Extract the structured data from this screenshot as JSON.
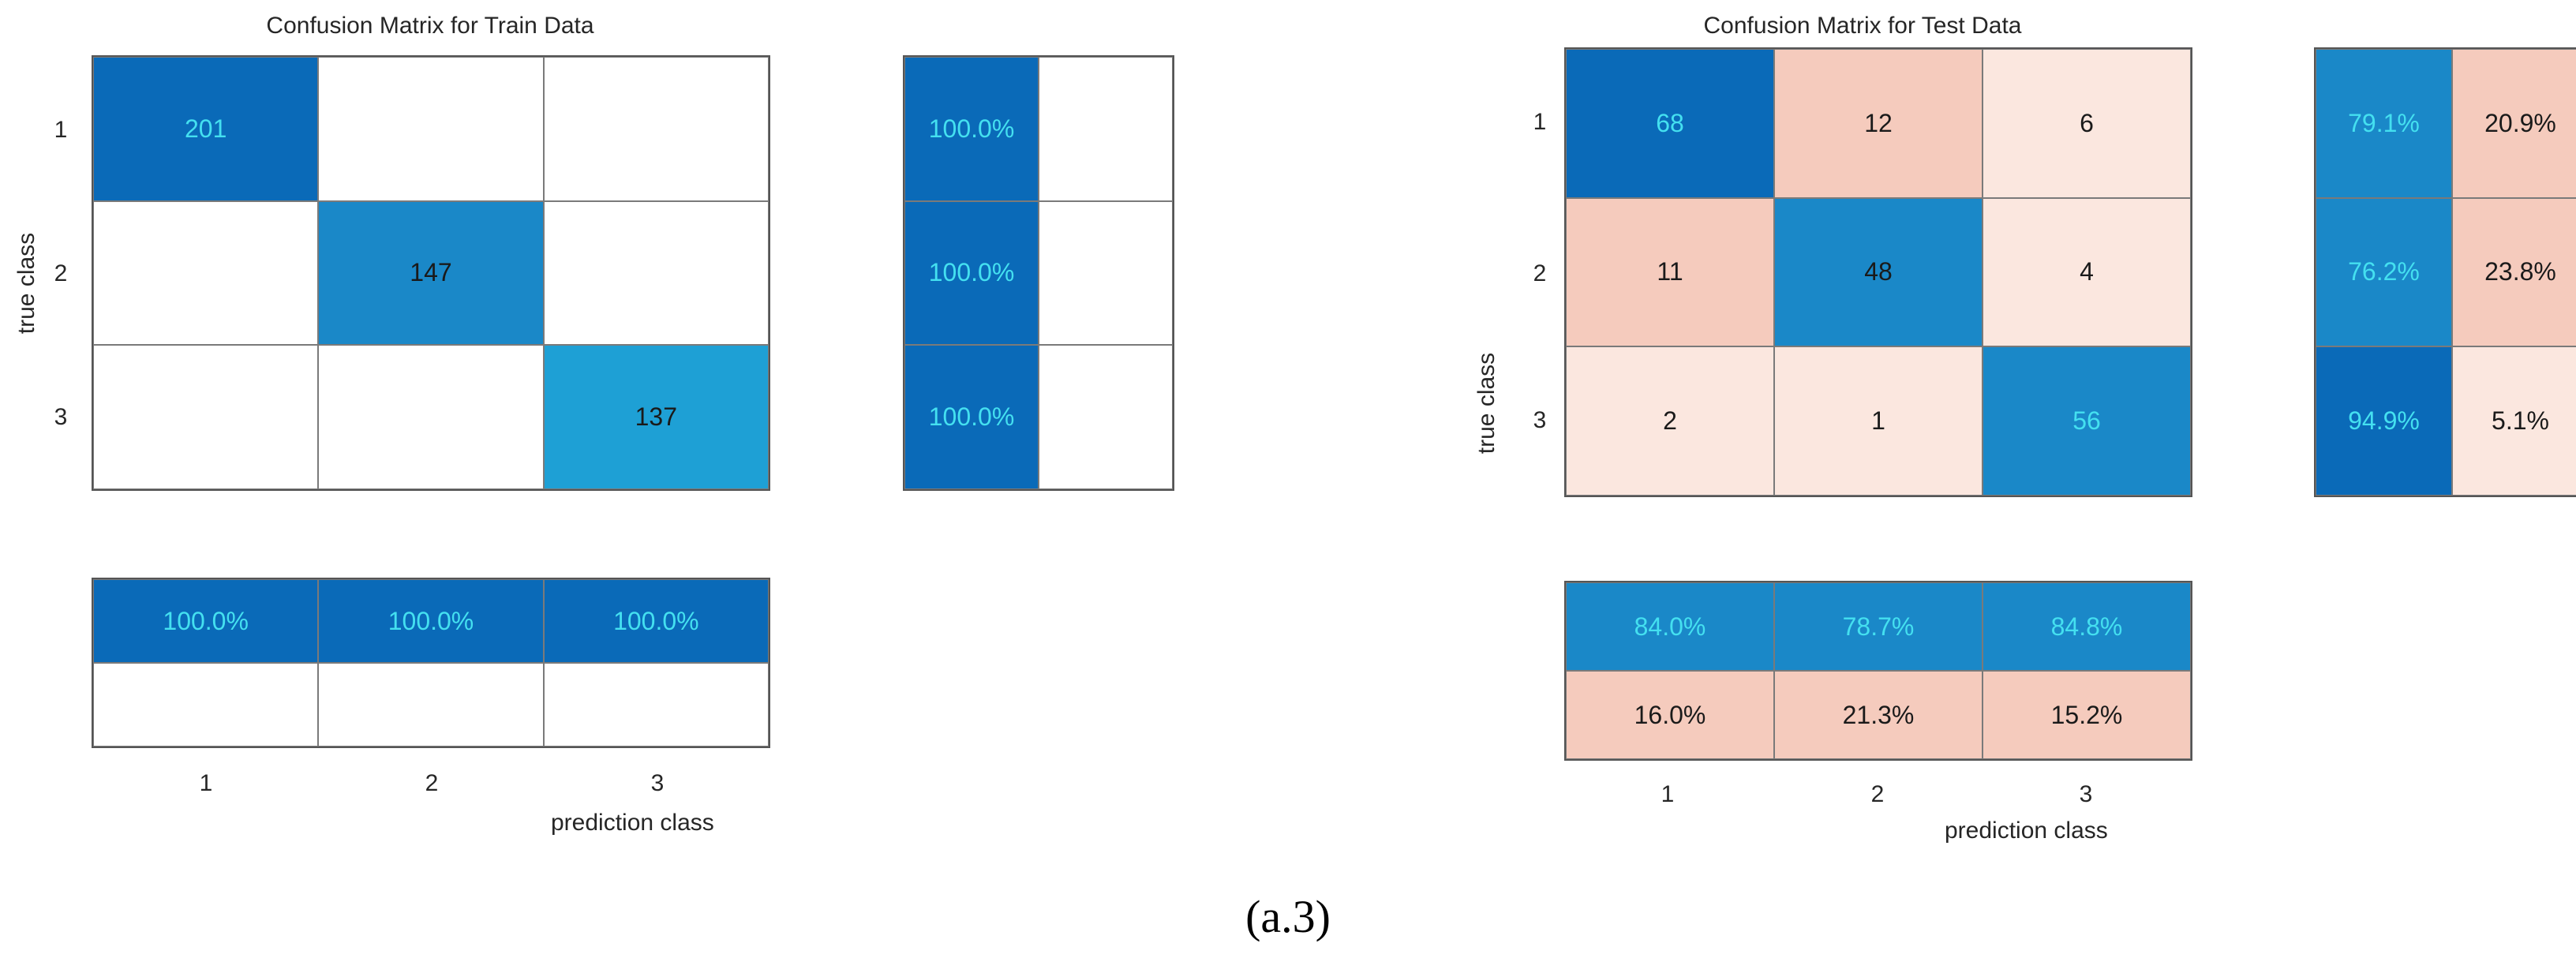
{
  "colors": {
    "blue_dark": "#0a6ab8",
    "blue_mid": "#1a88c8",
    "blue_light": "#1ea0d5",
    "pink_mid": "#f5cbbd",
    "pink_light": "#fbe7df",
    "white": "#ffffff",
    "cyan_text": "#44e0f0",
    "dark_text": "#1a1a1a"
  },
  "caption": "(a.3)",
  "chart_data": [
    {
      "type": "heatmap",
      "title": "Confusion Matrix for Train Data",
      "xlabel": "prediction class",
      "ylabel": "true class",
      "x_ticks": [
        "1",
        "2",
        "3"
      ],
      "y_ticks": [
        "1",
        "2",
        "3"
      ],
      "matrix": [
        [
          "201",
          "",
          ""
        ],
        [
          "",
          "147",
          ""
        ],
        [
          "",
          "",
          "137"
        ]
      ],
      "row_summary": [
        [
          "100.0%",
          ""
        ],
        [
          "100.0%",
          ""
        ],
        [
          "100.0%",
          ""
        ]
      ],
      "column_summary": [
        [
          "100.0%",
          "100.0%",
          "100.0%"
        ],
        [
          "",
          "",
          ""
        ]
      ],
      "cell_colors": {
        "matrix": [
          [
            "blue_dark",
            "white",
            "white"
          ],
          [
            "white",
            "blue_mid",
            "white"
          ],
          [
            "white",
            "white",
            "blue_light"
          ]
        ],
        "row_summary": [
          [
            "blue_dark",
            "white"
          ],
          [
            "blue_dark",
            "white"
          ],
          [
            "blue_dark",
            "white"
          ]
        ],
        "column_summary": [
          [
            "blue_dark",
            "blue_dark",
            "blue_dark"
          ],
          [
            "white",
            "white",
            "white"
          ]
        ]
      },
      "text_colors": {
        "matrix": [
          [
            "cyan_text",
            "dark_text",
            "dark_text"
          ],
          [
            "dark_text",
            "dark_text",
            "dark_text"
          ],
          [
            "dark_text",
            "dark_text",
            "dark_text"
          ]
        ],
        "row_summary": [
          [
            "cyan_text",
            "dark_text"
          ],
          [
            "cyan_text",
            "dark_text"
          ],
          [
            "cyan_text",
            "dark_text"
          ]
        ],
        "column_summary": [
          [
            "cyan_text",
            "cyan_text",
            "cyan_text"
          ],
          [
            "dark_text",
            "dark_text",
            "dark_text"
          ]
        ]
      }
    },
    {
      "type": "heatmap",
      "title": "Confusion Matrix for Test Data",
      "xlabel": "prediction class",
      "ylabel": "true class",
      "x_ticks": [
        "1",
        "2",
        "3"
      ],
      "y_ticks": [
        "1",
        "2",
        "3"
      ],
      "matrix": [
        [
          "68",
          "12",
          "6"
        ],
        [
          "11",
          "48",
          "4"
        ],
        [
          "2",
          "1",
          "56"
        ]
      ],
      "row_summary": [
        [
          "79.1%",
          "20.9%"
        ],
        [
          "76.2%",
          "23.8%"
        ],
        [
          "94.9%",
          "5.1%"
        ]
      ],
      "column_summary": [
        [
          "84.0%",
          "78.7%",
          "84.8%"
        ],
        [
          "16.0%",
          "21.3%",
          "15.2%"
        ]
      ],
      "cell_colors": {
        "matrix": [
          [
            "blue_dark",
            "pink_mid",
            "pink_light"
          ],
          [
            "pink_mid",
            "blue_mid",
            "pink_light"
          ],
          [
            "pink_light",
            "pink_light",
            "blue_mid"
          ]
        ],
        "row_summary": [
          [
            "blue_mid",
            "pink_mid"
          ],
          [
            "blue_mid",
            "pink_mid"
          ],
          [
            "blue_dark",
            "pink_light"
          ]
        ],
        "column_summary": [
          [
            "blue_mid",
            "blue_mid",
            "blue_mid"
          ],
          [
            "pink_mid",
            "pink_mid",
            "pink_mid"
          ]
        ]
      },
      "text_colors": {
        "matrix": [
          [
            "cyan_text",
            "dark_text",
            "dark_text"
          ],
          [
            "dark_text",
            "dark_text",
            "dark_text"
          ],
          [
            "dark_text",
            "dark_text",
            "cyan_text"
          ]
        ],
        "row_summary": [
          [
            "cyan_text",
            "dark_text"
          ],
          [
            "cyan_text",
            "dark_text"
          ],
          [
            "cyan_text",
            "dark_text"
          ]
        ],
        "column_summary": [
          [
            "cyan_text",
            "cyan_text",
            "cyan_text"
          ],
          [
            "dark_text",
            "dark_text",
            "dark_text"
          ]
        ]
      }
    }
  ]
}
